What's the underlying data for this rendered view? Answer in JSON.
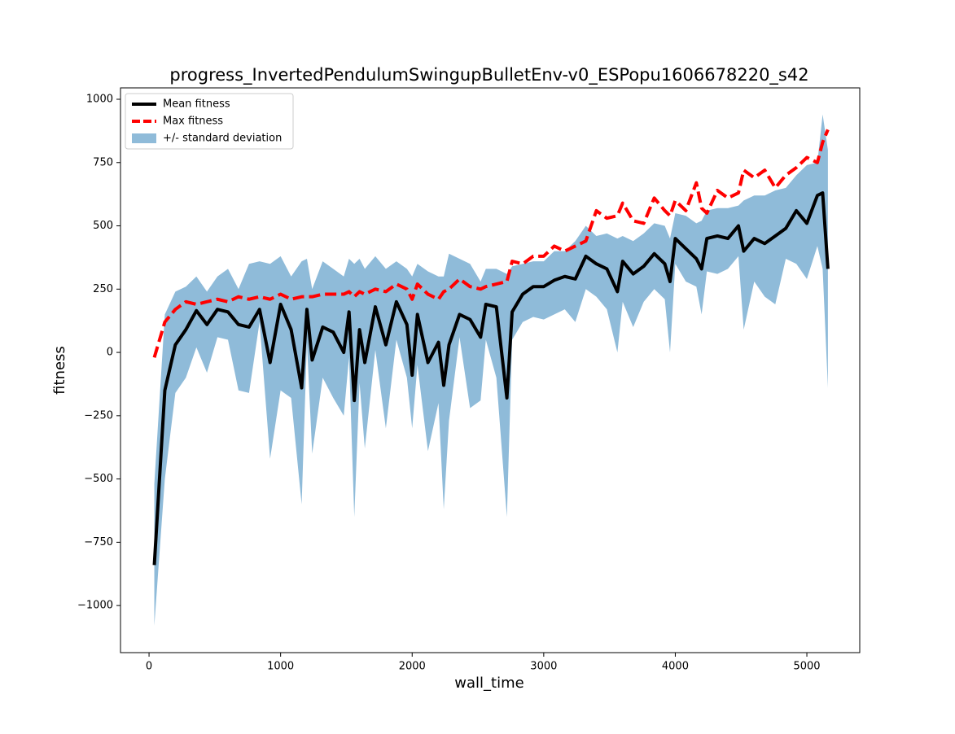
{
  "chart_data": {
    "type": "line",
    "title": "progress_InvertedPendulumSwingupBulletEnv-v0_ESPopu1606678220_s42",
    "x_label": "wall_time",
    "y_label": "fitness",
    "x": [
      40,
      120,
      200,
      280,
      360,
      440,
      520,
      600,
      680,
      760,
      840,
      920,
      1000,
      1080,
      1160,
      1200,
      1240,
      1320,
      1400,
      1480,
      1520,
      1560,
      1600,
      1640,
      1720,
      1800,
      1880,
      1960,
      2000,
      2040,
      2120,
      2200,
      2240,
      2280,
      2360,
      2440,
      2520,
      2560,
      2640,
      2720,
      2760,
      2840,
      2920,
      3000,
      3080,
      3160,
      3240,
      3320,
      3400,
      3480,
      3560,
      3600,
      3680,
      3760,
      3840,
      3920,
      3960,
      4000,
      4080,
      4160,
      4200,
      4240,
      4320,
      4400,
      4480,
      4520,
      4600,
      4680,
      4760,
      4840,
      4920,
      5000,
      5080,
      5120,
      5160
    ],
    "series": [
      {
        "name": "Mean fitness",
        "color": "#000000",
        "style": "solid",
        "values": [
          -840,
          -150,
          30,
          90,
          165,
          110,
          170,
          160,
          110,
          100,
          170,
          -40,
          190,
          90,
          -140,
          170,
          -30,
          100,
          80,
          0,
          160,
          -190,
          90,
          -40,
          180,
          30,
          200,
          110,
          -90,
          150,
          -40,
          40,
          -130,
          30,
          150,
          130,
          60,
          190,
          180,
          -180,
          160,
          230,
          260,
          260,
          285,
          300,
          290,
          380,
          350,
          330,
          240,
          360,
          310,
          340,
          390,
          350,
          280,
          450,
          410,
          370,
          330,
          450,
          460,
          450,
          500,
          400,
          450,
          430,
          460,
          490,
          560,
          510,
          620,
          630,
          330
        ]
      },
      {
        "name": "Max fitness",
        "color": "#ff0000",
        "style": "dashed",
        "values": [
          -20,
          120,
          170,
          200,
          190,
          200,
          210,
          200,
          220,
          210,
          220,
          210,
          230,
          210,
          220,
          220,
          220,
          230,
          230,
          230,
          240,
          220,
          240,
          230,
          250,
          240,
          270,
          250,
          210,
          270,
          230,
          210,
          240,
          250,
          290,
          260,
          250,
          260,
          270,
          280,
          360,
          350,
          380,
          380,
          420,
          400,
          420,
          440,
          560,
          530,
          540,
          590,
          520,
          510,
          610,
          560,
          540,
          600,
          560,
          670,
          570,
          550,
          640,
          610,
          630,
          720,
          690,
          720,
          650,
          700,
          730,
          770,
          750,
          830,
          880
        ]
      },
      {
        "name": "+/- standard deviation",
        "color": "#8fbbd9",
        "style": "band",
        "upper": [
          -520,
          150,
          240,
          260,
          300,
          240,
          300,
          330,
          250,
          350,
          360,
          350,
          380,
          300,
          360,
          370,
          250,
          360,
          330,
          300,
          370,
          350,
          370,
          330,
          380,
          330,
          360,
          330,
          300,
          350,
          320,
          300,
          300,
          390,
          370,
          350,
          280,
          330,
          330,
          310,
          340,
          350,
          360,
          360,
          400,
          400,
          440,
          500,
          460,
          470,
          450,
          460,
          440,
          470,
          510,
          500,
          450,
          550,
          540,
          510,
          520,
          560,
          570,
          570,
          580,
          600,
          620,
          620,
          640,
          650,
          700,
          740,
          750,
          940,
          800
        ],
        "lower": [
          -1080,
          -500,
          -160,
          -100,
          20,
          -80,
          60,
          50,
          -150,
          -160,
          120,
          -420,
          -150,
          -180,
          -600,
          40,
          -400,
          -100,
          -180,
          -250,
          -20,
          -650,
          -120,
          -380,
          10,
          -300,
          50,
          -100,
          -300,
          -50,
          -390,
          -200,
          -620,
          -270,
          60,
          -220,
          -190,
          50,
          -100,
          -650,
          50,
          120,
          140,
          130,
          150,
          170,
          120,
          250,
          220,
          170,
          0,
          200,
          100,
          200,
          250,
          210,
          0,
          350,
          280,
          260,
          150,
          320,
          310,
          330,
          380,
          90,
          280,
          220,
          190,
          370,
          350,
          290,
          420,
          330,
          -140
        ]
      }
    ],
    "xlim": [
      -217,
      5402
    ],
    "ylim": [
      -1186,
      1045
    ],
    "xticks": [
      0,
      1000,
      2000,
      3000,
      4000,
      5000
    ],
    "yticks": [
      -1000,
      -750,
      -500,
      -250,
      0,
      250,
      500,
      750,
      1000
    ],
    "legend": "upper left",
    "grid": false
  }
}
